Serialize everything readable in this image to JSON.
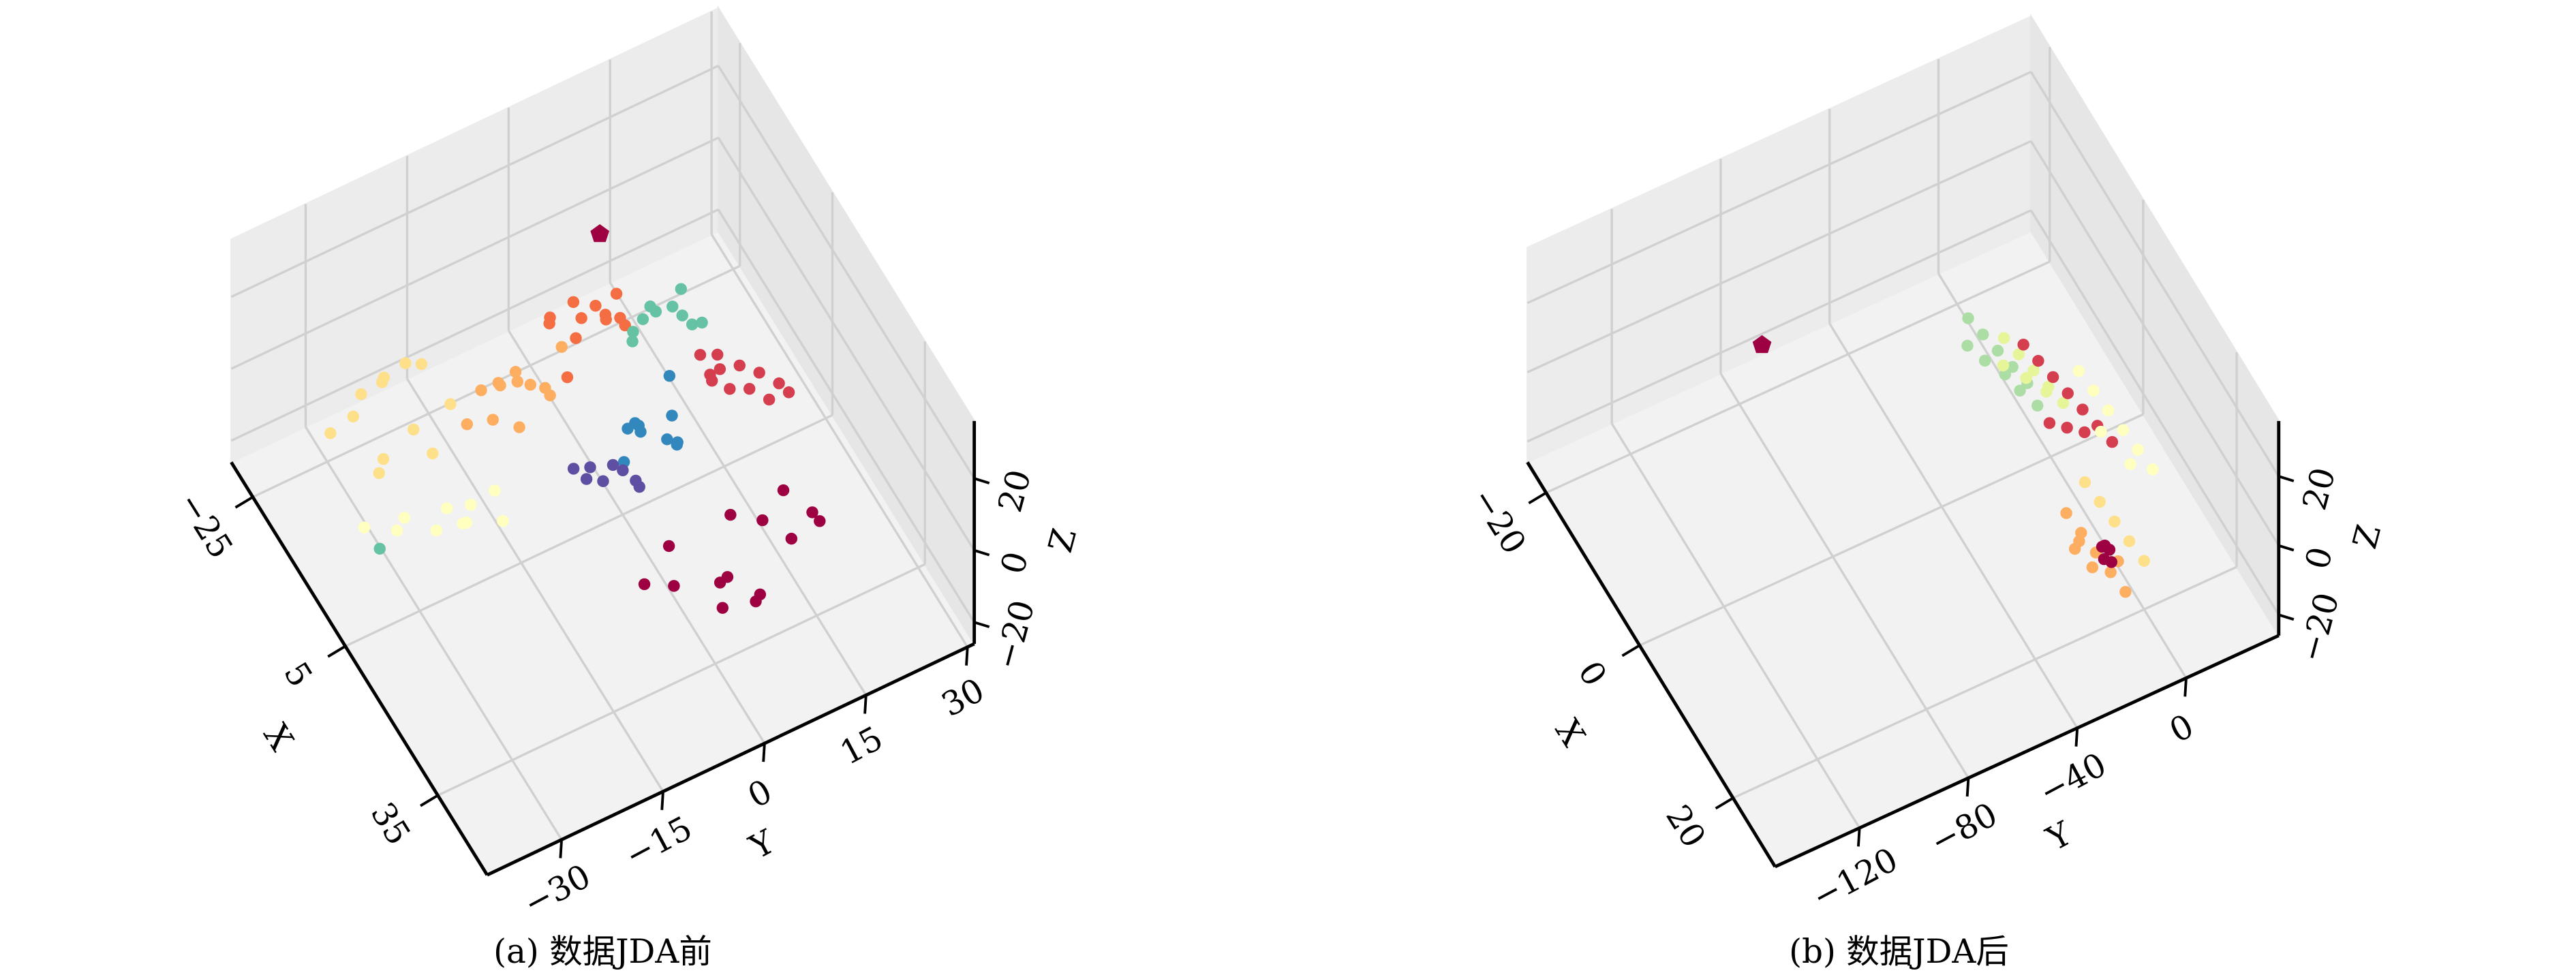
{
  "chart_data": [
    {
      "type": "scatter3d",
      "caption": "(a) 数据JDA前",
      "xlabel": "X",
      "ylabel": "Y",
      "zlabel": "Z",
      "xlim": [
        -32,
        51
      ],
      "ylim": [
        -41,
        31
      ],
      "zlim": [
        -26,
        36
      ],
      "xticks": [
        {
          "value": -25,
          "label": "−25"
        },
        5,
        35
      ],
      "yticks": [
        {
          "value": -30,
          "label": "−30"
        },
        {
          "value": -15,
          "label": "−15"
        },
        0,
        15,
        30
      ],
      "zticks": [
        {
          "value": -20,
          "label": "−20"
        },
        0,
        20
      ],
      "grid": true,
      "series": [
        {
          "color": "#fee08b",
          "x": [
            -14,
            -8,
            -12,
            -6,
            -16,
            -10,
            -4,
            -11,
            -7,
            -13,
            -9,
            -15
          ],
          "y": [
            -30,
            -25,
            -22,
            -31,
            -26,
            -33,
            -24,
            -28,
            -20,
            -35,
            -29,
            -23
          ],
          "z": [
            8,
            2,
            12,
            -2,
            5,
            10,
            0,
            15,
            6,
            3,
            -4,
            9
          ]
        },
        {
          "color": "#ffffbf",
          "x": [
            2,
            6,
            -2,
            8,
            4,
            0,
            10,
            5,
            3,
            7
          ],
          "y": [
            -32,
            -28,
            -35,
            -25,
            -22,
            -30,
            -20,
            -26,
            -18,
            -24
          ],
          "z": [
            -6,
            -4,
            -8,
            -2,
            -5,
            -7,
            -3,
            -1,
            -6,
            -4
          ]
        },
        {
          "color": "#fdae61",
          "x": [
            -8,
            -3,
            -6,
            -1,
            -9,
            -4,
            -7,
            -2,
            -5,
            -10,
            0,
            -6
          ],
          "y": [
            -15,
            -10,
            -18,
            -8,
            -12,
            -14,
            -6,
            -16,
            -11,
            -9,
            -13,
            -4
          ],
          "z": [
            4,
            8,
            0,
            6,
            2,
            10,
            -2,
            5,
            7,
            1,
            3,
            9
          ]
        },
        {
          "color": "#f46d43",
          "x": [
            -10,
            -5,
            -8,
            -3,
            -12,
            -6,
            -9,
            -4,
            -7,
            -11,
            -2,
            -8
          ],
          "y": [
            -4,
            2,
            -1,
            4,
            -3,
            1,
            6,
            -2,
            3,
            0,
            -5,
            5
          ],
          "z": [
            10,
            14,
            6,
            12,
            8,
            16,
            4,
            18,
            9,
            11,
            7,
            13
          ]
        },
        {
          "color": "#66c2a5",
          "x": [
            -6,
            -2,
            -5,
            0,
            -8,
            -3,
            -7,
            -1,
            -4,
            -9,
            3
          ],
          "y": [
            8,
            12,
            6,
            14,
            10,
            11,
            7,
            13,
            9,
            15,
            -35
          ],
          "z": [
            6,
            9,
            3,
            8,
            5,
            11,
            2,
            7,
            10,
            4,
            -7
          ]
        },
        {
          "color": "#3288bd",
          "x": [
            9,
            14,
            11,
            16,
            8,
            13,
            10,
            15,
            12,
            7
          ],
          "y": [
            0,
            4,
            -2,
            3,
            1,
            -1,
            5,
            2,
            -3,
            6
          ],
          "z": [
            5,
            3,
            8,
            6,
            2,
            9,
            4,
            7,
            1,
            10
          ]
        },
        {
          "color": "#5e4fa2",
          "x": [
            12,
            16,
            14,
            18,
            13,
            15,
            17,
            11
          ],
          "y": [
            -8,
            -5,
            -7,
            -4,
            -9,
            -6,
            -3,
            -10
          ],
          "z": [
            4,
            6,
            2,
            5,
            3,
            7,
            1,
            4
          ]
        },
        {
          "color": "#d53e4f",
          "x": [
            7,
            12,
            9,
            14,
            6,
            11,
            8,
            13,
            10,
            15,
            5,
            12
          ],
          "y": [
            12,
            17,
            14,
            19,
            11,
            16,
            13,
            18,
            15,
            20,
            14,
            10
          ],
          "z": [
            5,
            8,
            2,
            6,
            10,
            3,
            7,
            1,
            9,
            4,
            6,
            12
          ]
        },
        {
          "color": "#9e0142",
          "x": [
            20,
            28,
            24,
            32,
            22,
            26,
            30,
            18,
            27,
            35,
            23,
            29,
            25,
            33
          ],
          "y": [
            0,
            5,
            12,
            8,
            16,
            -2,
            3,
            10,
            18,
            6,
            -5,
            14,
            20,
            2
          ],
          "z": [
            -14,
            -16,
            -12,
            -18,
            -10,
            -15,
            -13,
            -17,
            -11,
            -14,
            -16,
            -12,
            -18,
            -15
          ]
        },
        {
          "color": "#9e0142",
          "marker": "pentagon",
          "x": [
            -9
          ],
          "y": [
            3
          ],
          "z": [
            30
          ]
        }
      ]
    },
    {
      "type": "scatter3d",
      "caption": "(b) 数据JDA后",
      "xlabel": "X",
      "ylabel": "Y",
      "zlabel": "Z",
      "xlim": [
        -24,
        29
      ],
      "ylim": [
        -151,
        34
      ],
      "zlim": [
        -26,
        36
      ],
      "xticks": [
        {
          "value": -20,
          "label": "−20"
        },
        0,
        20
      ],
      "yticks": [
        {
          "value": -120,
          "label": "−120"
        },
        {
          "value": -80,
          "label": "−80"
        },
        {
          "value": -40,
          "label": "−40"
        },
        0
      ],
      "zticks": [
        {
          "value": -20,
          "label": "−20"
        },
        0,
        20
      ],
      "grid": true,
      "series": [
        {
          "color": "#abdda4",
          "x": [
            -6,
            -4,
            -2,
            0,
            2,
            -5,
            -3,
            -1,
            1,
            3
          ],
          "y": [
            -20,
            -18,
            -16,
            -14,
            -12,
            -22,
            -19,
            -15,
            -13,
            -10
          ],
          "z": [
            8,
            7,
            6,
            5,
            4,
            3,
            2,
            1,
            0,
            -1
          ]
        },
        {
          "color": "#e6f598",
          "x": [
            -3,
            -1,
            1,
            3,
            5,
            -2,
            0,
            2
          ],
          "y": [
            -12,
            -10,
            -8,
            -6,
            -4,
            -14,
            -9,
            -5
          ],
          "z": [
            6,
            5,
            4,
            3,
            2,
            1,
            0,
            -1
          ]
        },
        {
          "color": "#d53e4f",
          "x": [
            0,
            2,
            4,
            6,
            8,
            10,
            12,
            9,
            7,
            5
          ],
          "y": [
            -10,
            -8,
            -6,
            -4,
            -2,
            0,
            2,
            -3,
            -6,
            -9
          ],
          "z": [
            10,
            9,
            8,
            7,
            6,
            5,
            4,
            2,
            0,
            -2
          ]
        },
        {
          "color": "#ffffbf",
          "x": [
            6,
            8,
            10,
            12,
            14,
            16,
            9,
            13
          ],
          "y": [
            0,
            2,
            4,
            6,
            8,
            10,
            3,
            7
          ],
          "z": [
            12,
            10,
            8,
            6,
            4,
            2,
            0,
            -2
          ]
        },
        {
          "color": "#fdae61",
          "x": [
            15,
            17,
            19,
            21,
            23,
            18,
            20,
            22,
            16
          ],
          "y": [
            -20,
            -18,
            -16,
            -14,
            -12,
            -22,
            -19,
            -13,
            -17
          ],
          "z": [
            -2,
            -4,
            -6,
            -8,
            -10,
            -5,
            -7,
            -3,
            -9
          ]
        },
        {
          "color": "#fee08b",
          "x": [
            12,
            14,
            16,
            18,
            20
          ],
          "y": [
            -8,
            -6,
            -4,
            -2,
            0
          ],
          "z": [
            -4,
            -6,
            -8,
            -10,
            -12
          ]
        },
        {
          "color": "#9e0142",
          "x": [
            18,
            19,
            20,
            19,
            18
          ],
          "y": [
            -12,
            -11,
            -12,
            -13,
            -11
          ],
          "z": [
            -8,
            -7,
            -8,
            -9,
            -8
          ]
        },
        {
          "color": "#9e0142",
          "marker": "pentagon",
          "x": [
            -14
          ],
          "y": [
            -82
          ],
          "z": [
            5
          ]
        }
      ]
    }
  ]
}
